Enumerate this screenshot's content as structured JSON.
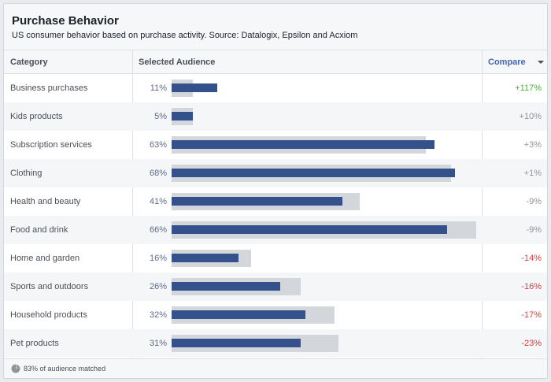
{
  "header": {
    "title": "Purchase Behavior",
    "subtitle": "US consumer behavior based on purchase activity. Source: Datalogix, Epsilon and Acxiom"
  },
  "columns": {
    "category": "Category",
    "audience": "Selected Audience",
    "compare": "Compare"
  },
  "colors": {
    "selected_bar": "#34518c",
    "baseline_bar": "#d3d6db",
    "positive": "#42b72a",
    "neutral": "#90949c",
    "negative": "#e03c3c"
  },
  "rows": [
    {
      "category": "Business purchases",
      "percent": "11%",
      "selected": 11,
      "baseline": 5,
      "compare": "+117%",
      "trend": "positive"
    },
    {
      "category": "Kids products",
      "percent": "5%",
      "selected": 5,
      "baseline": 5,
      "compare": "+10%",
      "trend": "neutral"
    },
    {
      "category": "Subscription services",
      "percent": "63%",
      "selected": 63,
      "baseline": 61,
      "compare": "+3%",
      "trend": "neutral"
    },
    {
      "category": "Clothing",
      "percent": "68%",
      "selected": 68,
      "baseline": 67,
      "compare": "+1%",
      "trend": "neutral"
    },
    {
      "category": "Health and beauty",
      "percent": "41%",
      "selected": 41,
      "baseline": 45,
      "compare": "-9%",
      "trend": "neutral"
    },
    {
      "category": "Food and drink",
      "percent": "66%",
      "selected": 66,
      "baseline": 73,
      "compare": "-9%",
      "trend": "neutral"
    },
    {
      "category": "Home and garden",
      "percent": "16%",
      "selected": 16,
      "baseline": 19,
      "compare": "-14%",
      "trend": "negative"
    },
    {
      "category": "Sports and outdoors",
      "percent": "26%",
      "selected": 26,
      "baseline": 31,
      "compare": "-16%",
      "trend": "negative"
    },
    {
      "category": "Household products",
      "percent": "32%",
      "selected": 32,
      "baseline": 39,
      "compare": "-17%",
      "trend": "negative"
    },
    {
      "category": "Pet products",
      "percent": "31%",
      "selected": 31,
      "baseline": 40,
      "compare": "-23%",
      "trend": "negative"
    }
  ],
  "footer": {
    "icon": "pie-chart-icon",
    "text": "83% of audience matched"
  }
}
